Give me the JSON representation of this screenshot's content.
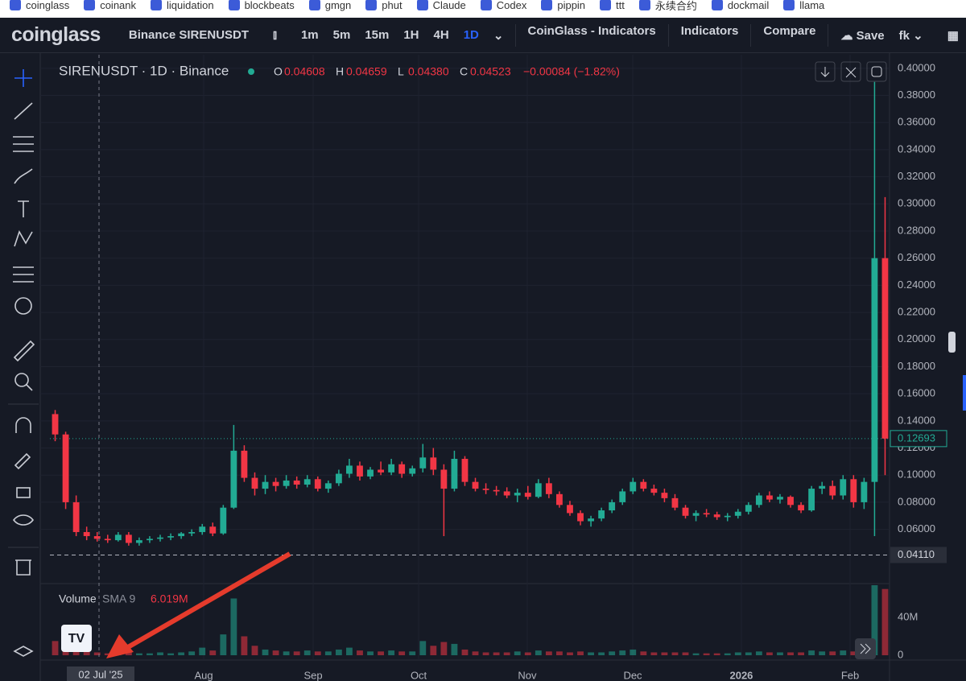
{
  "bookmarks": [
    "coinglass",
    "coinank",
    "liquidation",
    "blockbeats",
    "gmgn",
    "phut",
    "Claude",
    "Codex",
    "pippin",
    "ttt",
    "永续合约",
    "dockmail",
    "llama"
  ],
  "toolbar": {
    "logo": "coinglass",
    "symbol": "Binance SIRENUSDT",
    "intervals": [
      "1m",
      "5m",
      "15m",
      "1H",
      "4H",
      "1D"
    ],
    "active_interval": "1D",
    "menu": [
      "CoinGlass - Indicators",
      "Indicators",
      "Compare"
    ],
    "save": "Save",
    "user": "fk"
  },
  "chart_data": {
    "type": "candlestick",
    "title": "SIRENUSDT · 1D · Binance",
    "ohlc": [
      {
        "key": "O",
        "value": "0.04608"
      },
      {
        "key": "H",
        "value": "0.04659"
      },
      {
        "key": "L",
        "value": "0.04380"
      },
      {
        "key": "C",
        "value": "0.04523"
      }
    ],
    "change": "−0.00084 (−1.82%)",
    "up_color": "#22ab94",
    "down_color": "#f23645",
    "candles": [
      [
        0.145,
        0.148,
        0.125,
        0.13
      ],
      [
        0.13,
        0.132,
        0.075,
        0.08
      ],
      [
        0.08,
        0.085,
        0.055,
        0.058
      ],
      [
        0.058,
        0.062,
        0.052,
        0.055
      ],
      [
        0.055,
        0.058,
        0.051,
        0.053
      ],
      [
        0.053,
        0.056,
        0.05,
        0.052
      ],
      [
        0.052,
        0.058,
        0.051,
        0.056
      ],
      [
        0.056,
        0.058,
        0.048,
        0.05
      ],
      [
        0.05,
        0.054,
        0.048,
        0.052
      ],
      [
        0.052,
        0.055,
        0.05,
        0.053
      ],
      [
        0.053,
        0.056,
        0.051,
        0.054
      ],
      [
        0.054,
        0.057,
        0.052,
        0.055
      ],
      [
        0.055,
        0.058,
        0.053,
        0.057
      ],
      [
        0.057,
        0.06,
        0.055,
        0.058
      ],
      [
        0.058,
        0.064,
        0.056,
        0.062
      ],
      [
        0.062,
        0.065,
        0.055,
        0.057
      ],
      [
        0.057,
        0.078,
        0.056,
        0.076
      ],
      [
        0.076,
        0.137,
        0.075,
        0.118
      ],
      [
        0.118,
        0.122,
        0.095,
        0.098
      ],
      [
        0.098,
        0.102,
        0.085,
        0.09
      ],
      [
        0.09,
        0.1,
        0.086,
        0.095
      ],
      [
        0.095,
        0.098,
        0.088,
        0.092
      ],
      [
        0.092,
        0.1,
        0.09,
        0.096
      ],
      [
        0.096,
        0.099,
        0.09,
        0.093
      ],
      [
        0.093,
        0.1,
        0.091,
        0.097
      ],
      [
        0.097,
        0.099,
        0.088,
        0.09
      ],
      [
        0.09,
        0.096,
        0.087,
        0.094
      ],
      [
        0.094,
        0.104,
        0.092,
        0.101
      ],
      [
        0.101,
        0.112,
        0.098,
        0.107
      ],
      [
        0.107,
        0.11,
        0.096,
        0.099
      ],
      [
        0.099,
        0.106,
        0.097,
        0.104
      ],
      [
        0.104,
        0.11,
        0.1,
        0.102
      ],
      [
        0.102,
        0.112,
        0.1,
        0.108
      ],
      [
        0.108,
        0.11,
        0.098,
        0.101
      ],
      [
        0.101,
        0.107,
        0.099,
        0.105
      ],
      [
        0.105,
        0.123,
        0.102,
        0.113
      ],
      [
        0.113,
        0.12,
        0.1,
        0.104
      ],
      [
        0.104,
        0.108,
        0.055,
        0.09
      ],
      [
        0.09,
        0.118,
        0.088,
        0.112
      ],
      [
        0.112,
        0.114,
        0.092,
        0.095
      ],
      [
        0.095,
        0.098,
        0.088,
        0.09
      ],
      [
        0.09,
        0.094,
        0.086,
        0.089
      ],
      [
        0.089,
        0.092,
        0.085,
        0.088
      ],
      [
        0.088,
        0.091,
        0.083,
        0.085
      ],
      [
        0.085,
        0.09,
        0.08,
        0.087
      ],
      [
        0.087,
        0.092,
        0.082,
        0.084
      ],
      [
        0.084,
        0.097,
        0.083,
        0.094
      ],
      [
        0.094,
        0.098,
        0.083,
        0.086
      ],
      [
        0.086,
        0.088,
        0.076,
        0.078
      ],
      [
        0.078,
        0.081,
        0.07,
        0.072
      ],
      [
        0.072,
        0.074,
        0.063,
        0.066
      ],
      [
        0.066,
        0.07,
        0.062,
        0.068
      ],
      [
        0.068,
        0.076,
        0.066,
        0.074
      ],
      [
        0.074,
        0.082,
        0.072,
        0.08
      ],
      [
        0.08,
        0.09,
        0.078,
        0.088
      ],
      [
        0.088,
        0.098,
        0.086,
        0.095
      ],
      [
        0.095,
        0.097,
        0.088,
        0.09
      ],
      [
        0.09,
        0.093,
        0.085,
        0.087
      ],
      [
        0.087,
        0.09,
        0.08,
        0.083
      ],
      [
        0.083,
        0.086,
        0.074,
        0.076
      ],
      [
        0.076,
        0.078,
        0.068,
        0.07
      ],
      [
        0.07,
        0.074,
        0.066,
        0.072
      ],
      [
        0.072,
        0.075,
        0.069,
        0.071
      ],
      [
        0.071,
        0.073,
        0.067,
        0.069
      ],
      [
        0.069,
        0.072,
        0.066,
        0.07
      ],
      [
        0.07,
        0.075,
        0.068,
        0.073
      ],
      [
        0.073,
        0.08,
        0.071,
        0.078
      ],
      [
        0.078,
        0.087,
        0.076,
        0.085
      ],
      [
        0.085,
        0.088,
        0.08,
        0.082
      ],
      [
        0.082,
        0.086,
        0.079,
        0.084
      ],
      [
        0.084,
        0.085,
        0.076,
        0.078
      ],
      [
        0.078,
        0.08,
        0.072,
        0.074
      ],
      [
        0.074,
        0.092,
        0.073,
        0.09
      ],
      [
        0.09,
        0.095,
        0.086,
        0.092
      ],
      [
        0.092,
        0.096,
        0.082,
        0.085
      ],
      [
        0.085,
        0.1,
        0.082,
        0.097
      ],
      [
        0.097,
        0.1,
        0.076,
        0.08
      ],
      [
        0.08,
        0.098,
        0.075,
        0.095
      ],
      [
        0.095,
        0.39,
        0.055,
        0.26
      ],
      [
        0.26,
        0.305,
        0.1,
        0.12693
      ]
    ],
    "volume": [
      15,
      10,
      12,
      5,
      3,
      2,
      3,
      4,
      2,
      2,
      3,
      2,
      3,
      4,
      8,
      5,
      22,
      60,
      20,
      10,
      6,
      5,
      4,
      4,
      5,
      4,
      4,
      6,
      8,
      5,
      4,
      4,
      5,
      4,
      4,
      15,
      10,
      14,
      12,
      6,
      4,
      3,
      3,
      3,
      4,
      3,
      5,
      4,
      4,
      3,
      4,
      3,
      3,
      4,
      5,
      6,
      4,
      3,
      3,
      3,
      3,
      2,
      2,
      2,
      2,
      3,
      3,
      4,
      3,
      3,
      3,
      3,
      5,
      4,
      4,
      5,
      4,
      6,
      74,
      70
    ],
    "volume_legend": {
      "name": "Volume",
      "sma": "SMA 9",
      "sma_value": "6.019M"
    },
    "xlim": [
      0,
      80
    ],
    "xticks": [
      {
        "value": 14.64,
        "label": "Aug"
      },
      {
        "value": 25.06,
        "label": "Sep"
      },
      {
        "value": 35.1,
        "label": "Oct"
      },
      {
        "value": 45.44,
        "label": "Nov"
      },
      {
        "value": 55.48,
        "label": "Dec"
      },
      {
        "value": 65.82,
        "label": "2026"
      },
      {
        "value": 76.17,
        "label": "Feb"
      }
    ],
    "crosshair_label": "02 Jul '25",
    "ylim": [
      0.02,
      0.41
    ],
    "yticks": [
      {
        "value": 0.4,
        "label": "0.40000"
      },
      {
        "value": 0.38,
        "label": "0.38000"
      },
      {
        "value": 0.36,
        "label": "0.36000"
      },
      {
        "value": 0.34,
        "label": "0.34000"
      },
      {
        "value": 0.32,
        "label": "0.32000"
      },
      {
        "value": 0.3,
        "label": "0.30000"
      },
      {
        "value": 0.28,
        "label": "0.28000"
      },
      {
        "value": 0.26,
        "label": "0.26000"
      },
      {
        "value": 0.24,
        "label": "0.24000"
      },
      {
        "value": 0.22,
        "label": "0.22000"
      },
      {
        "value": 0.2,
        "label": "0.20000"
      },
      {
        "value": 0.18,
        "label": "0.18000"
      },
      {
        "value": 0.16,
        "label": "0.16000"
      },
      {
        "value": 0.14,
        "label": "0.14000"
      },
      {
        "value": 0.12,
        "label": "0.12000"
      },
      {
        "value": 0.1,
        "label": "0.10000"
      },
      {
        "value": 0.08,
        "label": "0.08000"
      },
      {
        "value": 0.06,
        "label": "0.06000"
      }
    ],
    "last_price": {
      "value": 0.12693,
      "label": "0.12693"
    },
    "price_line": {
      "value": 0.0411,
      "label": "0.04110"
    },
    "vlim": [
      0,
      74
    ],
    "vticks": [
      {
        "value": 40,
        "label": "40M"
      },
      0
    ]
  }
}
